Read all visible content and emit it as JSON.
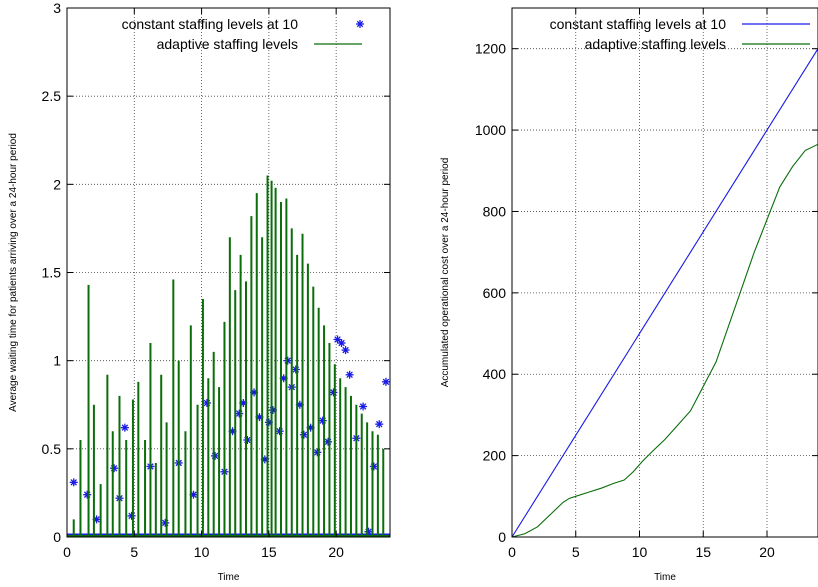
{
  "figure": {
    "colors": {
      "constant": "#1a1ae6",
      "adaptive": "#0a6e0a",
      "grid": "#444444"
    }
  },
  "chart_data": [
    {
      "type": "line",
      "title": "",
      "xlabel": "Time",
      "ylabel": "Average waiting time for patients arriving over a 24-hour period",
      "xlim": [
        0,
        24
      ],
      "ylim": [
        0,
        3
      ],
      "xticks": [
        0,
        5,
        10,
        15,
        20
      ],
      "yticks": [
        0,
        0.5,
        1,
        1.5,
        2,
        2.5,
        3
      ],
      "ytick_labels": [
        "0",
        "0.5",
        "1",
        "1.5",
        "2",
        "2.5",
        "3"
      ],
      "grid": true,
      "legend_position": "top-right",
      "series": [
        {
          "name": "constant staffing levels at 10",
          "style": "points",
          "marker": "asterisk",
          "x": [
            0.5,
            1.5,
            2.2,
            3.5,
            3.9,
            4.3,
            4.8,
            6.2,
            7.3,
            8.3,
            9.4,
            10.4,
            11.0,
            11.7,
            12.3,
            12.8,
            13.1,
            13.4,
            13.9,
            14.3,
            14.7,
            15.0,
            15.3,
            15.8,
            16.1,
            16.4,
            16.7,
            17.0,
            17.3,
            17.6,
            18.1,
            18.6,
            19.0,
            19.4,
            19.8,
            20.1,
            20.4,
            20.7,
            21.0,
            21.5,
            22.0,
            22.4,
            22.8,
            23.2,
            23.7
          ],
          "y": [
            0.31,
            0.24,
            0.1,
            0.39,
            0.22,
            0.62,
            0.12,
            0.4,
            0.08,
            0.42,
            0.24,
            0.76,
            0.46,
            0.37,
            0.6,
            0.7,
            0.76,
            0.55,
            0.82,
            0.68,
            0.44,
            0.65,
            0.72,
            0.6,
            0.9,
            1.0,
            0.85,
            0.95,
            0.75,
            0.58,
            0.62,
            0.48,
            0.66,
            0.54,
            0.82,
            1.12,
            1.1,
            1.06,
            0.92,
            0.56,
            0.74,
            0.03,
            0.4,
            0.64,
            0.88
          ]
        },
        {
          "name": "adaptive staffing levels",
          "style": "spikes",
          "x": [
            0.5,
            1.0,
            1.6,
            2.0,
            2.5,
            3.0,
            3.4,
            3.9,
            4.4,
            4.9,
            5.3,
            5.8,
            6.2,
            6.6,
            7.0,
            7.4,
            7.9,
            8.3,
            8.8,
            9.2,
            9.7,
            10.1,
            10.5,
            10.9,
            11.3,
            11.7,
            12.1,
            12.5,
            12.9,
            13.3,
            13.7,
            14.1,
            14.5,
            14.9,
            15.2,
            15.5,
            15.9,
            16.3,
            16.7,
            17.1,
            17.5,
            17.9,
            18.3,
            18.7,
            19.1,
            19.5,
            19.9,
            20.3,
            20.7,
            21.1,
            21.5,
            21.9,
            22.3,
            22.7,
            23.1,
            23.5
          ],
          "y": [
            0.1,
            0.55,
            1.43,
            0.75,
            0.3,
            0.92,
            0.6,
            0.8,
            0.55,
            0.78,
            0.88,
            0.55,
            1.1,
            0.42,
            0.92,
            0.65,
            1.46,
            1.0,
            0.6,
            1.2,
            0.75,
            1.35,
            0.9,
            1.05,
            0.85,
            1.22,
            1.7,
            1.4,
            1.6,
            1.45,
            1.82,
            1.95,
            1.7,
            2.05,
            2.02,
            1.98,
            1.9,
            1.92,
            1.75,
            1.6,
            1.72,
            1.55,
            1.42,
            1.3,
            1.2,
            1.1,
            0.98,
            0.9,
            0.85,
            0.8,
            0.75,
            0.7,
            0.65,
            0.6,
            0.58,
            0.5
          ]
        }
      ]
    },
    {
      "type": "line",
      "title": "",
      "xlabel": "Time",
      "ylabel": "Accumulated operational cost over a 24-hour period",
      "xlim": [
        0,
        24
      ],
      "ylim": [
        0,
        1300
      ],
      "xticks": [
        0,
        5,
        10,
        15,
        20
      ],
      "yticks": [
        0,
        200,
        400,
        600,
        800,
        1000,
        1200
      ],
      "ytick_labels": [
        "0",
        "200",
        "400",
        "600",
        "800",
        "1000",
        "1200"
      ],
      "grid": true,
      "legend_position": "top-right",
      "series": [
        {
          "name": "constant staffing levels at 10",
          "style": "line",
          "x": [
            0,
            24
          ],
          "y": [
            0,
            1200
          ]
        },
        {
          "name": "adaptive staffing levels",
          "style": "line",
          "x": [
            0,
            1,
            2,
            3,
            4,
            4.5,
            5,
            6,
            7,
            8,
            8.8,
            9.5,
            10.2,
            11,
            12,
            13,
            14,
            15,
            16,
            17,
            18,
            19,
            20,
            21,
            22,
            23,
            24
          ],
          "y": [
            0,
            8,
            25,
            55,
            85,
            95,
            100,
            110,
            120,
            132,
            140,
            160,
            185,
            210,
            240,
            275,
            310,
            370,
            430,
            520,
            610,
            700,
            780,
            860,
            910,
            950,
            965
          ]
        }
      ]
    }
  ]
}
